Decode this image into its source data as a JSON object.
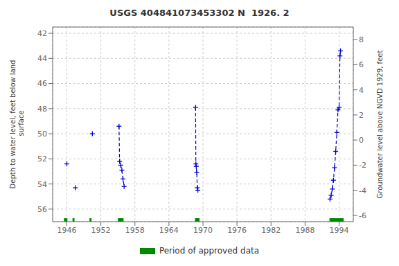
{
  "chart_data": {
    "type": "line",
    "title": "USGS 404841073453302 N  1926. 2",
    "ylabel": "Depth to water level, feet below land\n surface",
    "y2label": "Groundwater level above NGVD 1929, feet",
    "xlim": [
      1943.5,
      1996.5
    ],
    "xticks": [
      1946,
      1952,
      1958,
      1964,
      1970,
      1976,
      1982,
      1988,
      1994
    ],
    "ylim": [
      57.0,
      41.5
    ],
    "yticks": [
      42,
      44,
      46,
      48,
      50,
      52,
      54,
      56
    ],
    "y2lim": [
      -6.5,
      9.0
    ],
    "y2ticks": [
      -6,
      -4,
      -2,
      0,
      2,
      4,
      6,
      8
    ],
    "grid": true,
    "legend": "bottom",
    "series": [
      {
        "type": "scatter",
        "color": "#0000cc",
        "marker": "plus",
        "x": [
          1946.0,
          1947.5,
          1950.5
        ],
        "values": [
          52.4,
          54.3,
          50.0
        ]
      },
      {
        "type": "line",
        "color": "#0000cc",
        "marker": "plus",
        "line_style": "dashed",
        "x": [
          1955.2,
          1955.3,
          1955.5,
          1955.7,
          1955.9,
          1956.1
        ],
        "values": [
          49.4,
          52.2,
          52.5,
          52.9,
          53.6,
          54.2
        ]
      },
      {
        "type": "line",
        "color": "#0000cc",
        "marker": "plus",
        "line_style": "dashed",
        "x": [
          1968.7,
          1968.75,
          1968.82,
          1968.9,
          1969.0,
          1969.1
        ],
        "values": [
          47.9,
          52.4,
          52.6,
          53.1,
          54.3,
          54.5
        ]
      },
      {
        "type": "line",
        "color": "#0000cc",
        "marker": "plus",
        "line_style": "dashed",
        "x": [
          1992.4,
          1992.6,
          1992.8,
          1993.0,
          1993.2,
          1993.4,
          1993.6,
          1993.8,
          1994.0,
          1994.15,
          1994.25
        ],
        "values": [
          55.2,
          54.9,
          54.4,
          53.7,
          52.7,
          51.4,
          49.9,
          48.1,
          47.9,
          43.8,
          43.4
        ]
      }
    ],
    "approved_periods": {
      "name": "Period of approved data",
      "color": "#008800",
      "x": [
        1945.5,
        1947.0,
        1950.0,
        1955.0,
        1968.6,
        1992.3
      ],
      "widths": [
        0.6,
        0.35,
        0.35,
        1.0,
        0.8,
        2.5
      ]
    }
  }
}
